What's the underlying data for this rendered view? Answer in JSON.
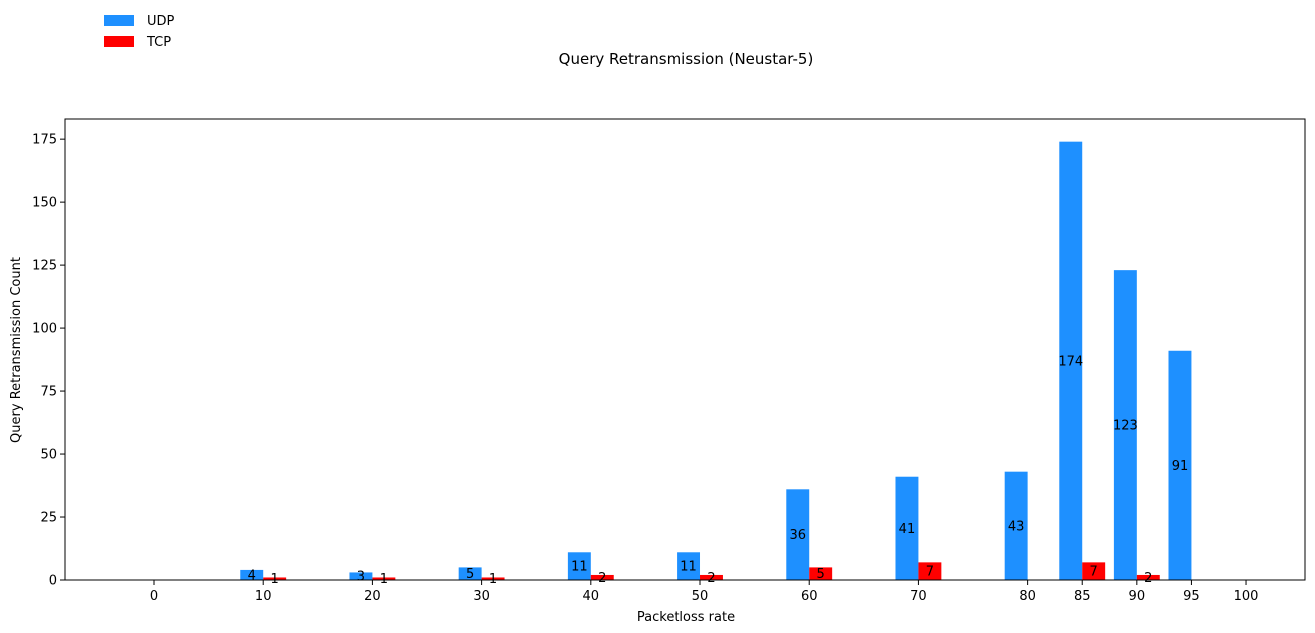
{
  "chart_data": {
    "type": "bar",
    "title": "Query Retransmission (Neustar-5)",
    "xlabel": "Packetloss rate",
    "ylabel": "Query Retransmission Count",
    "ylim": [
      0,
      183
    ],
    "yticks": [
      0,
      25,
      50,
      75,
      100,
      125,
      150,
      175
    ],
    "categories": [
      "0",
      "10",
      "20",
      "30",
      "40",
      "50",
      "60",
      "70",
      "80",
      "85",
      "90",
      "95",
      "100"
    ],
    "x": [
      0,
      10,
      20,
      30,
      40,
      50,
      60,
      70,
      80,
      85,
      90,
      95,
      100
    ],
    "series": [
      {
        "name": "UDP",
        "color": "#1e90ff",
        "values": [
          0,
          4,
          3,
          5,
          11,
          11,
          36,
          41,
          43,
          174,
          123,
          91,
          0
        ],
        "labels": [
          "",
          "4",
          "3",
          "5",
          "11",
          "11",
          "36",
          "41",
          "43",
          "174",
          "123",
          "91",
          ""
        ]
      },
      {
        "name": "TCP",
        "color": "#ff0000",
        "values": [
          0,
          1,
          1,
          1,
          2,
          2,
          5,
          7,
          0,
          7,
          2,
          0,
          0
        ],
        "labels": [
          "",
          "1",
          "1",
          "1",
          "2",
          "2",
          "5",
          "7",
          "",
          "7",
          "2",
          "",
          ""
        ]
      }
    ],
    "legend_position": "top-left",
    "grid": false
  }
}
